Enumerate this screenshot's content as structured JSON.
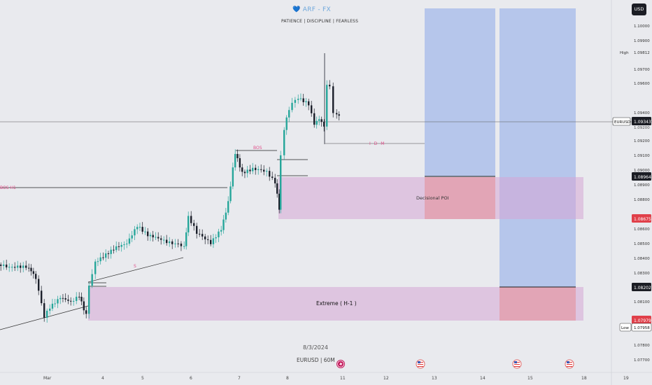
{
  "header": {
    "brand": "ARF - FX",
    "tagline": "PATIENCE  |  DISCIPLINE  |  FEARLESS",
    "currency_button": "USD"
  },
  "watermark": {
    "date": "8/3/2024",
    "symbol_tf": "EURUSD | 60M"
  },
  "annotations": {
    "bos_h1": "BOS H1",
    "bos": "BOS",
    "s": "S",
    "idm": "I D M",
    "decisional_poi": "Decisional POI",
    "extreme": "Extreme ( H-1 )"
  },
  "price_axis": {
    "ticks": [
      "1.10000",
      "1.09900",
      "1.09700",
      "1.09600",
      "1.09400",
      "1.09200",
      "1.09100",
      "1.09000",
      "1.08900",
      "1.08800",
      "1.08700",
      "1.08600",
      "1.08500",
      "1.08400",
      "1.08300",
      "1.08100",
      "1.07900",
      "1.07800",
      "1.07700"
    ],
    "high_label": "High",
    "high_value": "1.09812",
    "symbol": "EURUSD",
    "last_price": "1.09343",
    "target_level_1": "1.08964",
    "stop_level": "1.08675",
    "target_level_2": "1.08202",
    "stop_level_2": "1.07979",
    "low_label": "Low",
    "low_value": "1.07958",
    "zone1_label": "1.09200"
  },
  "time_axis": {
    "labels": [
      "Mar",
      "4",
      "5",
      "6",
      "7",
      "8",
      "11",
      "12",
      "13",
      "14",
      "15",
      "18",
      "19"
    ]
  },
  "colors": {
    "background": "#e9eaee",
    "bull": "#26a69a",
    "bear": "#1b1f2a",
    "poi_zone": "#d6a6d6",
    "projection": "#a9bdea",
    "stop": "#e58a94",
    "label_pink": "#e0508a"
  },
  "event_icons": [
    "lightning-icon",
    "us-flag-icon",
    "us-flag-icon",
    "us-flag-icon"
  ]
}
